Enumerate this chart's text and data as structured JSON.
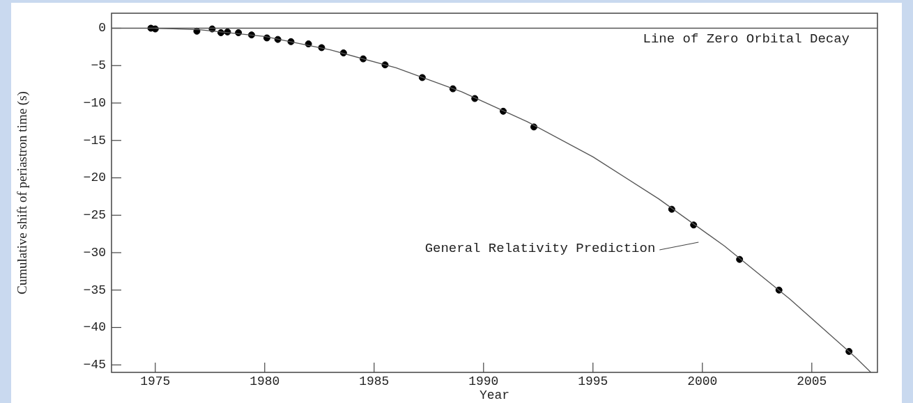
{
  "chart_data": {
    "type": "scatter",
    "xlabel": "Year",
    "ylabel": "Cumulative shift of periastron time (s)",
    "xlim": [
      1973,
      2008
    ],
    "ylim": [
      -46,
      2
    ],
    "xticks": [
      1975,
      1980,
      1985,
      1990,
      1995,
      2000,
      2005
    ],
    "yticks": [
      0,
      -5,
      -10,
      -15,
      -20,
      -25,
      -30,
      -35,
      -40,
      -45
    ],
    "marker": "circle",
    "series": [
      {
        "type": "line",
        "marker": "none",
        "color": "#555555",
        "x": [
          1975,
          1977,
          1980,
          1983,
          1986,
          1989,
          1992,
          1995,
          1998,
          2001,
          2004,
          2007,
          2007.7
        ],
        "values": [
          0,
          -0.2,
          -1.1,
          -2.9,
          -5.3,
          -8.5,
          -12.5,
          -17.2,
          -22.8,
          -29.1,
          -36.2,
          -44.0,
          -46.0
        ]
      },
      {
        "color": "#000000",
        "x": [
          1974.8,
          1975.0,
          1976.9,
          1977.6,
          1978.0,
          1978.3,
          1978.8,
          1979.4,
          1980.1,
          1980.6,
          1981.2,
          1982.0,
          1982.6,
          1983.6,
          1984.5,
          1985.5,
          1987.2,
          1988.6,
          1989.6,
          1990.9,
          1992.3,
          1998.6,
          1999.6,
          2001.7,
          2003.5,
          2006.7
        ],
        "values": [
          0,
          -0.1,
          -0.4,
          -0.1,
          -0.6,
          -0.5,
          -0.6,
          -0.9,
          -1.3,
          -1.5,
          -1.8,
          -2.1,
          -2.6,
          -3.3,
          -4.1,
          -4.9,
          -6.6,
          -8.1,
          -9.4,
          -11.1,
          -13.2,
          -24.2,
          -26.3,
          -30.9,
          -35.0,
          -43.2
        ]
      }
    ],
    "ref_lines": [
      {
        "axis": "y",
        "value": 0,
        "label": "Line of Zero Orbital Decay",
        "color": "#555555"
      }
    ],
    "annotations": [
      "General Relativity Prediction"
    ]
  }
}
